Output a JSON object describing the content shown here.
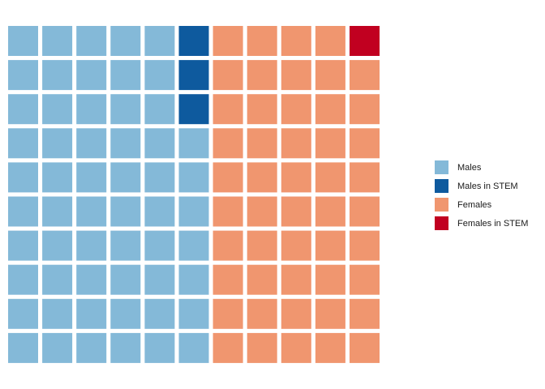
{
  "chart_data": {
    "type": "waffle",
    "columns": 11,
    "rows": 10,
    "fill_order": "column-major, bottom-to-top, left-to-right",
    "grid": false,
    "legend_position": "right",
    "categories": [
      {
        "name": "Males",
        "count": 57,
        "color": "#84B9D8"
      },
      {
        "name": "Males in STEM",
        "count": 3,
        "color": "#0E5A9E"
      },
      {
        "name": "Females",
        "count": 49,
        "color": "#F0966F"
      },
      {
        "name": "Females in STEM",
        "count": 1,
        "color": "#C10020"
      }
    ]
  }
}
